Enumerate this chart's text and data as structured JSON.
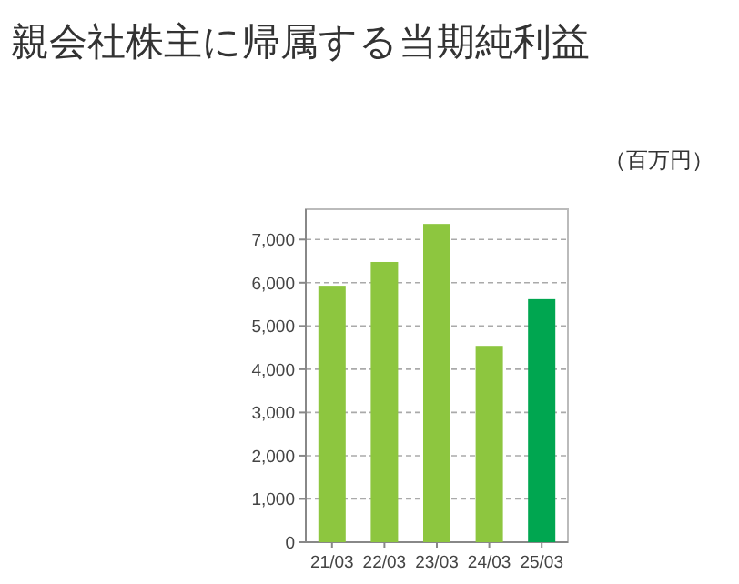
{
  "chart_data": {
    "type": "bar",
    "title": "親会社株主に帰属する当期純利益",
    "ylabel": "（百万円）",
    "categories": [
      "21/03",
      "22/03",
      "23/03",
      "24/03",
      "25/03"
    ],
    "values": [
      5930,
      6480,
      7360,
      4540,
      5620
    ],
    "colors": [
      "#8dc63f",
      "#8dc63f",
      "#8dc63f",
      "#8dc63f",
      "#00a650"
    ],
    "ylim": [
      0,
      7700
    ],
    "yticks": [
      {
        "value": 0,
        "label": "0"
      },
      {
        "value": 1000,
        "label": "1,000"
      },
      {
        "value": 2000,
        "label": "2,000"
      },
      {
        "value": 3000,
        "label": "3,000"
      },
      {
        "value": 4000,
        "label": "4,000"
      },
      {
        "value": 5000,
        "label": "5,000"
      },
      {
        "value": 6000,
        "label": "6,000"
      },
      {
        "value": 7000,
        "label": "7,000"
      }
    ],
    "grid": "y"
  }
}
